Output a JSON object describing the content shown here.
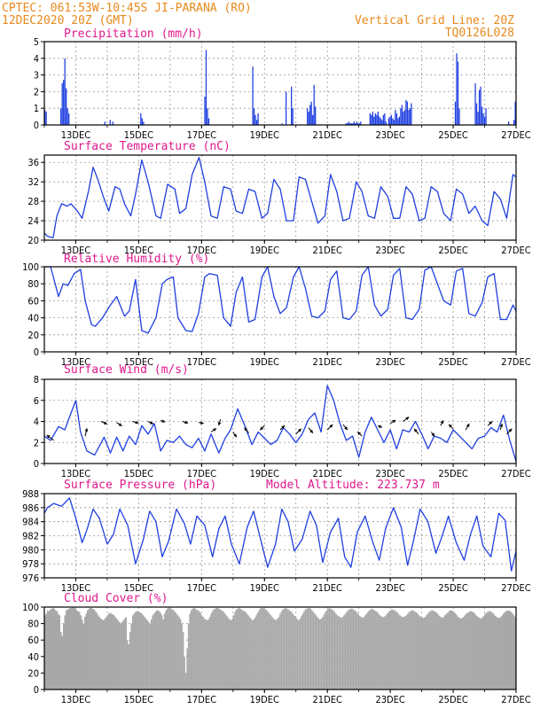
{
  "header": {
    "left_line1": "CPTEC:   061:53W-10:45S   JI-PARANA (RO)",
    "left_line2": "12DEC2020 20Z (GMT)",
    "right_line1": "Vertical Grid Line: 20Z",
    "right_line2": "TQ0126L028"
  },
  "colors": {
    "header": "#e8891c",
    "panel_title": "#e0188c",
    "series": "#1f3fe0",
    "cloud": "#a8a8a8",
    "arrow": "#000000"
  },
  "chart_data": [
    {
      "type": "bar",
      "id": "precipitation",
      "title": "Precipitation (mm/h)",
      "ylim": [
        0,
        5
      ],
      "yticks": [
        0,
        1,
        2,
        3,
        4,
        5
      ],
      "xticks": [
        "13DEC",
        "15DEC",
        "17DEC",
        "19DEC",
        "21DEC",
        "23DEC",
        "25DEC",
        "27DEC"
      ],
      "values": [
        0.9,
        0.8,
        0,
        0,
        0,
        0,
        0,
        0,
        0,
        0,
        0,
        0,
        1.0,
        2.5,
        2.7,
        4.0,
        2.2,
        1.0,
        0.7,
        0,
        0,
        0,
        0,
        0,
        0,
        0,
        0,
        0,
        0,
        0,
        0,
        0,
        0,
        0,
        0,
        0,
        0,
        0,
        0,
        0,
        0,
        0,
        0,
        0,
        0,
        0.2,
        0,
        0,
        0,
        0.3,
        0,
        0.2,
        0,
        0,
        0,
        0,
        0,
        0,
        0,
        0,
        0,
        0,
        0,
        0,
        0,
        0,
        0,
        0,
        0,
        0,
        0,
        0,
        0.7,
        0.4,
        0.2,
        0,
        0,
        0,
        0,
        0,
        0,
        0,
        0,
        0,
        0,
        0,
        0,
        0,
        0,
        0,
        0,
        0,
        0,
        0,
        0,
        0,
        0,
        0,
        0,
        0,
        0,
        0,
        0,
        0,
        0,
        0,
        0,
        0,
        0,
        0,
        0,
        0,
        0,
        0,
        0,
        0,
        0,
        0,
        0,
        0,
        1.7,
        4.5,
        1.0,
        0.4,
        0,
        0,
        0,
        0,
        0,
        0,
        0,
        0,
        0,
        0,
        0,
        0,
        0,
        0,
        0,
        0,
        0,
        0,
        0,
        0,
        0,
        0,
        0,
        0,
        0,
        0,
        0,
        0,
        0,
        0,
        0,
        0,
        3.5,
        1.0,
        0.6,
        0.3,
        0.7,
        0,
        0,
        0,
        0,
        0,
        0,
        0,
        0,
        0,
        0,
        0,
        0,
        0,
        0,
        0,
        0,
        0,
        0.1,
        0,
        0,
        2.0,
        0,
        0,
        0,
        2.3,
        1.0,
        0,
        0,
        0,
        0,
        0,
        0,
        0,
        0,
        0,
        0,
        1.0,
        0.8,
        1.2,
        1.4,
        0.6,
        2.4,
        1.1,
        0,
        0,
        0,
        0,
        0,
        0,
        0,
        0,
        0,
        0,
        0,
        0,
        0,
        0,
        0,
        0,
        0,
        0,
        0,
        0,
        0,
        0,
        0.1,
        0.1,
        0.2,
        0.1,
        0.1,
        0.1,
        0.2,
        0.1,
        0.2,
        0.1,
        0.1,
        0.2,
        0,
        0,
        0,
        0,
        0,
        0,
        0.7,
        0.6,
        0.8,
        0.5,
        0.7,
        0.6,
        0.8,
        0.5,
        0.4,
        0.3,
        0.6,
        0.7,
        0.2,
        0,
        0.4,
        0.5,
        0.6,
        0.4,
        0.3,
        0.9,
        0.7,
        0.4,
        0.5,
        1.0,
        1.2,
        0.8,
        0.9,
        1.5,
        1.4,
        0.9,
        1.0,
        1.3,
        0,
        0,
        0,
        0,
        0,
        0,
        0,
        0,
        0,
        0,
        0,
        0,
        0,
        0,
        0,
        0,
        0,
        0,
        0,
        0,
        0,
        0,
        0,
        0,
        0,
        0,
        0,
        0,
        0,
        0,
        0,
        0,
        1.4,
        4.3,
        3.8,
        1.0,
        0,
        0,
        0,
        0,
        0,
        0,
        0,
        0,
        0,
        0,
        0,
        2.5,
        1.3,
        0.8,
        2.1,
        2.3,
        1.1,
        0.7,
        0.5,
        1.0,
        0,
        0,
        0,
        0,
        0,
        0,
        0,
        0,
        0,
        0,
        0,
        0,
        0,
        0,
        0,
        0,
        0.2,
        0,
        0,
        0,
        0.3,
        1.4
      ]
    },
    {
      "type": "line",
      "id": "temperature",
      "title": "Surface Temperature (nC)",
      "ylim": [
        20,
        37.5
      ],
      "yticks": [
        20,
        24,
        28,
        32,
        36
      ],
      "xticks": [
        "13DEC",
        "15DEC",
        "17DEC",
        "19DEC",
        "21DEC",
        "23DEC",
        "25DEC",
        "27DEC"
      ],
      "x": [
        0,
        0.1,
        0.28,
        0.4,
        0.55,
        0.72,
        0.85,
        1.05,
        1.2,
        1.4,
        1.55,
        1.7,
        1.9,
        2.05,
        2.25,
        2.4,
        2.55,
        2.75,
        2.9,
        3.1,
        3.3,
        3.55,
        3.7,
        3.92,
        4.15,
        4.3,
        4.5,
        4.7,
        4.92,
        5.1,
        5.3,
        5.5,
        5.7,
        5.92,
        6.1,
        6.3,
        6.5,
        6.7,
        6.92,
        7.1,
        7.3,
        7.5,
        7.7,
        7.92,
        8.1,
        8.3,
        8.5,
        8.7,
        8.92,
        9.1,
        9.3,
        9.5,
        9.7,
        9.92,
        10.1,
        10.3,
        10.5,
        10.7,
        10.92,
        11.1,
        11.3,
        11.5,
        11.7,
        11.92,
        12.1,
        12.3,
        12.5,
        12.7,
        12.92,
        13.1,
        13.3,
        13.5,
        13.7,
        13.92,
        14.1,
        14.3,
        14.5,
        14.7,
        14.9,
        15.0
      ],
      "y": [
        21.5,
        20.8,
        20.5,
        25.0,
        27.5,
        27.0,
        27.5,
        26.0,
        24.5,
        30.0,
        35.0,
        32.5,
        28.5,
        26.0,
        31.0,
        30.5,
        27.5,
        25.0,
        29.5,
        36.5,
        32.0,
        25.0,
        24.5,
        31.5,
        30.5,
        25.5,
        26.5,
        33.5,
        37.0,
        32.0,
        25.0,
        24.5,
        31.0,
        30.5,
        26.0,
        25.5,
        30.5,
        30.0,
        24.5,
        25.5,
        32.5,
        30.5,
        24.0,
        24.0,
        33.0,
        32.5,
        28.0,
        23.5,
        25.0,
        33.5,
        30.0,
        24.0,
        24.5,
        32.0,
        30.0,
        25.0,
        24.5,
        31.0,
        29.0,
        24.5,
        24.5,
        31.0,
        29.5,
        24.0,
        24.5,
        31.0,
        30.0,
        25.5,
        24.0,
        30.5,
        29.5,
        25.5,
        27.0,
        24.0,
        23.0,
        30.0,
        28.5,
        24.5,
        33.5,
        33.0
      ]
    },
    {
      "type": "line",
      "id": "humidity",
      "title": "Relative Humidity (%)",
      "ylim": [
        0,
        100
      ],
      "yticks": [
        0,
        20,
        40,
        60,
        80,
        100
      ],
      "xticks": [
        "13DEC",
        "15DEC",
        "17DEC",
        "19DEC",
        "21DEC",
        "23DEC",
        "25DEC",
        "27DEC"
      ],
      "x": [
        0,
        0.2,
        0.45,
        0.6,
        0.75,
        0.95,
        1.15,
        1.3,
        1.5,
        1.62,
        1.85,
        2.1,
        2.3,
        2.55,
        2.7,
        2.9,
        3.1,
        3.3,
        3.55,
        3.75,
        3.9,
        4.1,
        4.25,
        4.5,
        4.7,
        4.9,
        5.1,
        5.25,
        5.5,
        5.7,
        5.92,
        6.1,
        6.3,
        6.5,
        6.7,
        6.92,
        7.1,
        7.3,
        7.5,
        7.7,
        7.92,
        8.1,
        8.3,
        8.5,
        8.7,
        8.92,
        9.1,
        9.3,
        9.5,
        9.7,
        9.92,
        10.1,
        10.3,
        10.5,
        10.7,
        10.92,
        11.1,
        11.3,
        11.5,
        11.7,
        11.92,
        12.1,
        12.3,
        12.5,
        12.7,
        12.92,
        13.1,
        13.3,
        13.5,
        13.7,
        13.92,
        14.1,
        14.3,
        14.5,
        14.7,
        14.9,
        15.0
      ],
      "y": [
        100,
        100,
        65,
        80,
        78,
        92,
        97,
        60,
        32,
        30,
        40,
        55,
        65,
        42,
        48,
        85,
        25,
        22,
        40,
        80,
        85,
        88,
        40,
        25,
        24,
        45,
        88,
        92,
        90,
        40,
        30,
        70,
        88,
        35,
        38,
        88,
        100,
        65,
        45,
        52,
        88,
        100,
        75,
        42,
        40,
        48,
        85,
        95,
        40,
        38,
        48,
        90,
        100,
        55,
        42,
        50,
        90,
        98,
        40,
        38,
        50,
        96,
        100,
        80,
        60,
        55,
        95,
        98,
        45,
        42,
        58,
        88,
        92,
        38,
        38,
        55,
        48
      ]
    },
    {
      "type": "line",
      "id": "wind",
      "title": "Surface Wind (m/s)",
      "ylim": [
        0,
        8
      ],
      "yticks": [
        0,
        2,
        4,
        6,
        8
      ],
      "xticks": [
        "13DEC",
        "15DEC",
        "17DEC",
        "19DEC",
        "21DEC",
        "23DEC",
        "25DEC",
        "27DEC"
      ],
      "x": [
        0,
        0.2,
        0.45,
        0.65,
        0.85,
        1.0,
        1.15,
        1.35,
        1.6,
        1.9,
        2.1,
        2.3,
        2.5,
        2.7,
        2.9,
        3.1,
        3.3,
        3.5,
        3.7,
        3.9,
        4.1,
        4.3,
        4.5,
        4.7,
        4.9,
        5.1,
        5.3,
        5.55,
        5.75,
        5.92,
        6.15,
        6.4,
        6.6,
        6.8,
        7.0,
        7.2,
        7.4,
        7.6,
        7.8,
        8.0,
        8.2,
        8.4,
        8.6,
        8.8,
        9.0,
        9.2,
        9.4,
        9.6,
        9.8,
        10.0,
        10.2,
        10.4,
        10.6,
        10.8,
        11.0,
        11.2,
        11.4,
        11.6,
        11.8,
        12.0,
        12.2,
        12.4,
        12.6,
        12.8,
        13.0,
        13.2,
        13.4,
        13.6,
        13.8,
        14.0,
        14.2,
        14.4,
        14.6,
        14.8,
        15.0
      ],
      "y": [
        2.6,
        2.2,
        3.5,
        3.2,
        4.8,
        6.0,
        3.0,
        1.2,
        0.8,
        2.5,
        1.0,
        2.5,
        1.2,
        2.6,
        1.8,
        3.6,
        2.8,
        3.8,
        1.2,
        2.2,
        2.0,
        2.6,
        1.8,
        1.5,
        2.4,
        1.2,
        2.8,
        1.0,
        2.4,
        3.2,
        5.2,
        3.4,
        1.8,
        3.0,
        2.4,
        1.8,
        2.2,
        3.4,
        2.8,
        2.0,
        2.8,
        4.2,
        4.8,
        3.0,
        7.4,
        6.0,
        3.8,
        2.2,
        2.6,
        0.6,
        3.0,
        4.4,
        3.2,
        2.0,
        3.2,
        1.4,
        3.2,
        3.0,
        4.0,
        2.8,
        1.4,
        2.6,
        2.4,
        2.0,
        3.2,
        2.6,
        2.0,
        1.4,
        2.4,
        2.6,
        3.4,
        3.0,
        4.6,
        2.2,
        0.2
      ]
    },
    {
      "type": "line",
      "id": "pressure",
      "title": "Surface Pressure (hPa)",
      "annotation": "Model Altitude: 223.737 m",
      "ylim": [
        976,
        988
      ],
      "yticks": [
        976,
        978,
        980,
        982,
        984,
        986,
        988
      ],
      "xticks": [
        "13DEC",
        "15DEC",
        "17DEC",
        "19DEC",
        "21DEC",
        "23DEC",
        "25DEC",
        "27DEC"
      ],
      "x": [
        0,
        0.1,
        0.3,
        0.55,
        0.8,
        1.0,
        1.2,
        1.35,
        1.55,
        1.75,
        2.0,
        2.2,
        2.4,
        2.65,
        2.9,
        3.15,
        3.35,
        3.55,
        3.75,
        3.95,
        4.2,
        4.45,
        4.65,
        4.85,
        5.1,
        5.35,
        5.55,
        5.75,
        5.95,
        6.2,
        6.45,
        6.65,
        6.85,
        7.1,
        7.35,
        7.55,
        7.75,
        7.95,
        8.2,
        8.45,
        8.65,
        8.85,
        9.1,
        9.35,
        9.55,
        9.75,
        9.95,
        10.2,
        10.45,
        10.65,
        10.85,
        11.1,
        11.35,
        11.55,
        11.75,
        11.95,
        12.2,
        12.45,
        12.65,
        12.85,
        13.1,
        13.35,
        13.55,
        13.75,
        13.95,
        14.2,
        14.45,
        14.65,
        14.85,
        15.0
      ],
      "y": [
        985.2,
        986.0,
        986.6,
        986.2,
        987.4,
        984.5,
        981.0,
        982.8,
        985.8,
        984.5,
        980.8,
        982.2,
        985.8,
        983.5,
        978.0,
        981.5,
        985.5,
        984.0,
        979.0,
        981.2,
        985.8,
        983.8,
        980.8,
        984.8,
        983.5,
        979.0,
        983.0,
        984.8,
        980.8,
        978.0,
        983.2,
        985.5,
        982.0,
        977.5,
        980.8,
        985.8,
        984.0,
        979.8,
        981.5,
        985.5,
        983.5,
        978.2,
        982.5,
        984.5,
        979.0,
        977.5,
        982.5,
        984.8,
        981.0,
        978.5,
        983.0,
        986.0,
        983.2,
        977.8,
        981.5,
        985.8,
        984.0,
        979.5,
        982.0,
        984.8,
        981.0,
        978.5,
        982.2,
        984.8,
        980.5,
        979.0,
        985.2,
        984.2,
        977.0,
        979.8
      ]
    },
    {
      "type": "bar",
      "id": "cloud",
      "title": "Cloud Cover (%)",
      "ylim": [
        0,
        100
      ],
      "yticks": [
        0,
        20,
        40,
        60,
        80,
        100
      ],
      "xticks": [
        "13DEC",
        "15DEC",
        "17DEC",
        "19DEC",
        "21DEC",
        "23DEC",
        "25DEC",
        "27DEC"
      ],
      "values": [
        90,
        92,
        96,
        95,
        97,
        98,
        99,
        98,
        96,
        95,
        92,
        90,
        70,
        65,
        80,
        90,
        96,
        97,
        98,
        99,
        99,
        100,
        99,
        98,
        96,
        95,
        94,
        90,
        85,
        80,
        88,
        92,
        96,
        98,
        99,
        99,
        98,
        97,
        95,
        93,
        90,
        88,
        86,
        85,
        84,
        86,
        88,
        90,
        92,
        93,
        92,
        91,
        90,
        88,
        86,
        84,
        82,
        80,
        82,
        84,
        86,
        88,
        60,
        55,
        70,
        80,
        90,
        92,
        94,
        95,
        95,
        94,
        93,
        92,
        90,
        88,
        86,
        84,
        82,
        80,
        85,
        90,
        92,
        94,
        96,
        96,
        95,
        93,
        90,
        85,
        92,
        96,
        98,
        99,
        99,
        98,
        97,
        96,
        94,
        92,
        90,
        88,
        85,
        80,
        70,
        40,
        20,
        50,
        80,
        92,
        96,
        98,
        99,
        98,
        97,
        96,
        95,
        93,
        90,
        88,
        86,
        85,
        84,
        85,
        88,
        92,
        95,
        97,
        98,
        99,
        99,
        98,
        97,
        96,
        95,
        93,
        91,
        89,
        87,
        85,
        84,
        86,
        90,
        94,
        97,
        98,
        99,
        98,
        97,
        96,
        95,
        94,
        92,
        90,
        88,
        86,
        84,
        85,
        87,
        90,
        93,
        96,
        98,
        99,
        99,
        98,
        97,
        96,
        94,
        92,
        90,
        88,
        86,
        85,
        84,
        86,
        88,
        92,
        95,
        97,
        98,
        99,
        98,
        97,
        96,
        95,
        93,
        91,
        89,
        87,
        85,
        84,
        86,
        89,
        92,
        95,
        97,
        98,
        99,
        99,
        98,
        96,
        94,
        92,
        90,
        88,
        86,
        85,
        86,
        88,
        91,
        94,
        96,
        98,
        99,
        98,
        97,
        96,
        94,
        92,
        90,
        89,
        88,
        87,
        88,
        90,
        92,
        94,
        96,
        97,
        98,
        98,
        97,
        96,
        95,
        93,
        91,
        89,
        88,
        87,
        88,
        90,
        92,
        94,
        96,
        97,
        98,
        97,
        96,
        95,
        94,
        92,
        90,
        89,
        88,
        88,
        89,
        91,
        93,
        95,
        96,
        97,
        97,
        96,
        95,
        94,
        92,
        90,
        89,
        88,
        88,
        89,
        90,
        92,
        94,
        95,
        96,
        96,
        95,
        94,
        93,
        91,
        89,
        88,
        87,
        87,
        88,
        90,
        92,
        94,
        95,
        96,
        96,
        95,
        94,
        93,
        91,
        89,
        88,
        87,
        88,
        90,
        92,
        93,
        95,
        96,
        96,
        95,
        94,
        92,
        90,
        88,
        87,
        86,
        87,
        88,
        90,
        92,
        93,
        94,
        95,
        95,
        94,
        93,
        91,
        89,
        88,
        87,
        86,
        87,
        89,
        91,
        93,
        94,
        95,
        95,
        94,
        93,
        91,
        89,
        88,
        87,
        87,
        88,
        90,
        92,
        94,
        95,
        96,
        96,
        95,
        94,
        92,
        90,
        88
      ]
    }
  ]
}
